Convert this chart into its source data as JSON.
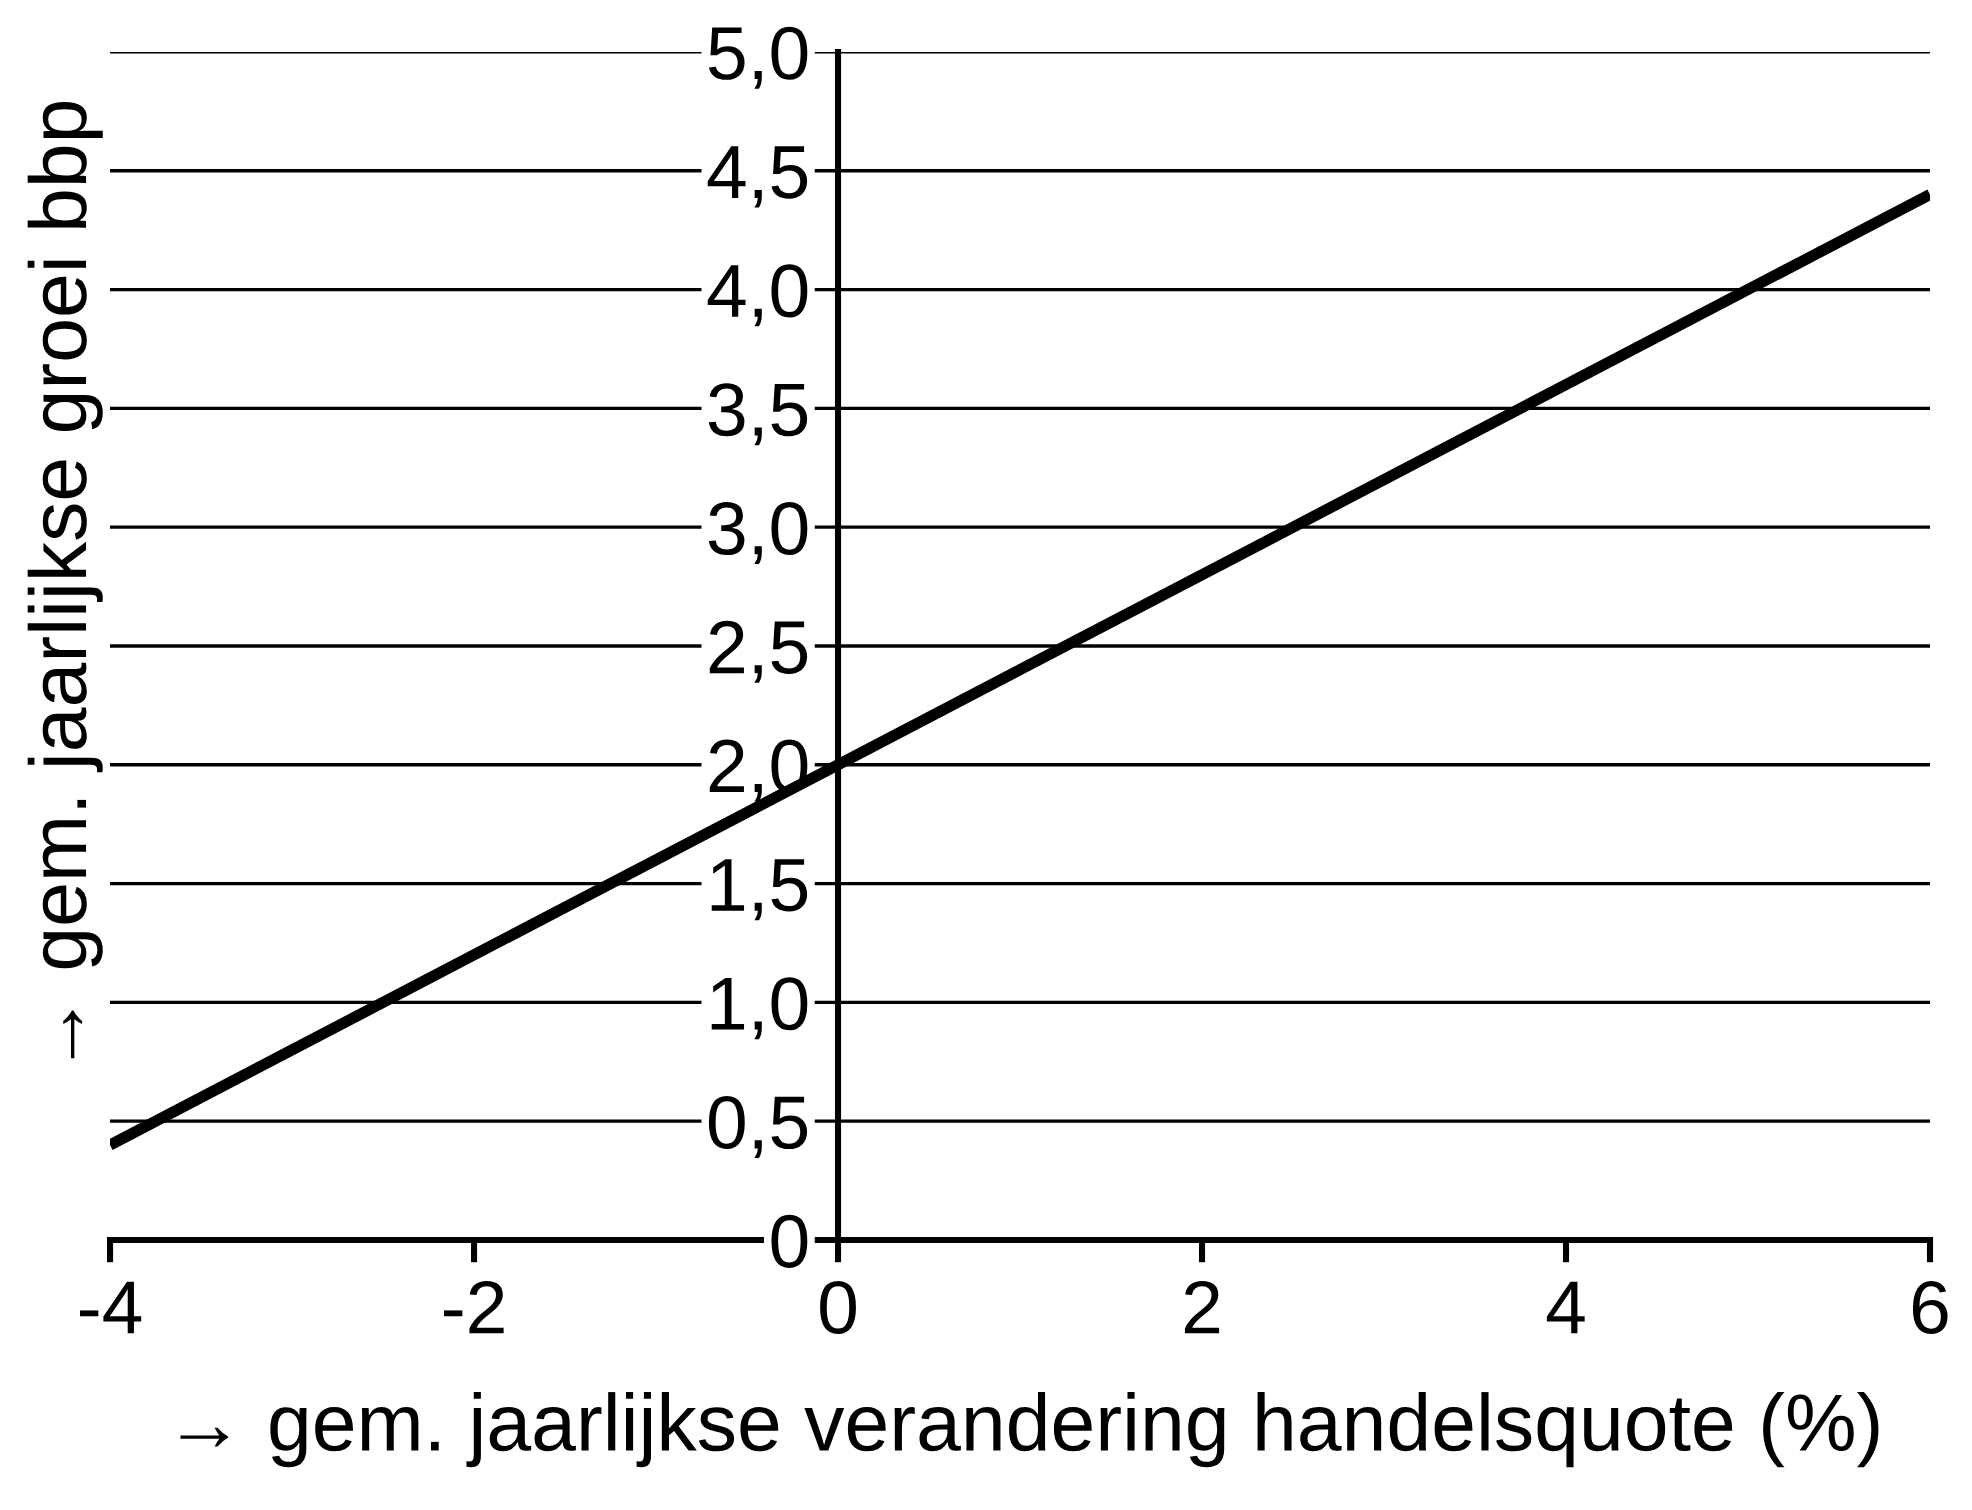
{
  "chart_data": {
    "type": "line",
    "xlabel": "→ gem. jaarlijkse verandering handelsquote (%)",
    "ylabel": "→ gem. jaarlijkse groei bbp",
    "x": [
      -4,
      6
    ],
    "series": [
      {
        "values": [
          0.4,
          4.4
        ],
        "color": "#000000"
      }
    ],
    "xlim": [
      -4,
      6
    ],
    "xticks": [
      -4,
      -2,
      0,
      2,
      4,
      6
    ],
    "ylim": [
      0,
      5
    ],
    "yticks": [
      0,
      {
        "value": 0.5,
        "label": "0,5"
      },
      {
        "value": 1.0,
        "label": "1,0"
      },
      {
        "value": 1.5,
        "label": "1,5"
      },
      {
        "value": 2.0,
        "label": "2,0"
      },
      {
        "value": 2.5,
        "label": "2,5"
      },
      {
        "value": 3.0,
        "label": "3,0"
      },
      {
        "value": 3.5,
        "label": "3,5"
      },
      {
        "value": 4.0,
        "label": "4,0"
      },
      {
        "value": 4.5,
        "label": "4,5"
      },
      {
        "value": 5.0,
        "label": "5,0"
      }
    ],
    "grid": "y",
    "line_style": "solid"
  }
}
